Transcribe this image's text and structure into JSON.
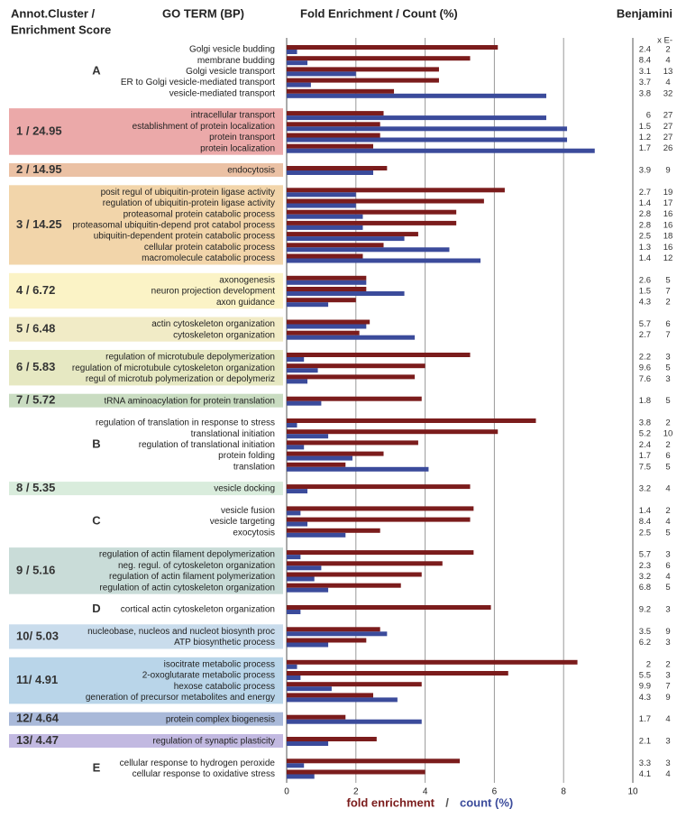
{
  "chart_data": {
    "type": "bar",
    "headers": {
      "cluster": [
        "Annot.Cluster /",
        "Enrichment Score"
      ],
      "term": "GO TERM (BP)",
      "values": "Fold Enrichment / Count (%)",
      "benjamini": "Benjamini",
      "benjamini_unit": "x E-"
    },
    "series": [
      {
        "name": "fold enrichment",
        "color": "#7b1c1c"
      },
      {
        "name": "count (%)",
        "color": "#3b4b9b"
      }
    ],
    "legend_separator": "/",
    "xlim": [
      0,
      10
    ],
    "xticks": [
      0,
      2,
      4,
      6,
      8,
      10
    ],
    "grid": true,
    "groups": [
      {
        "label": "A",
        "terms": [
          {
            "name": "Golgi vesicle budding",
            "values": [
              6.1,
              0.3
            ],
            "benjamini": [
              2.4,
              2
            ]
          },
          {
            "name": "membrane budding",
            "values": [
              5.3,
              0.6
            ],
            "benjamini": [
              8.4,
              4
            ]
          },
          {
            "name": "Golgi vesicle transport",
            "values": [
              4.4,
              2.0
            ],
            "benjamini": [
              3.1,
              13
            ]
          },
          {
            "name": "ER to Golgi vesicle-mediated transport",
            "values": [
              4.4,
              0.7
            ],
            "benjamini": [
              3.7,
              4
            ]
          },
          {
            "name": "vesicle-mediated transport",
            "values": [
              3.1,
              7.5
            ],
            "benjamini": [
              3.8,
              32
            ]
          }
        ]
      },
      {
        "label": "1 / 24.95",
        "color": "#eba9a9",
        "terms": [
          {
            "name": "intracellular transport",
            "values": [
              2.8,
              7.5
            ],
            "benjamini": [
              6,
              27
            ]
          },
          {
            "name": "establishment of protein localization",
            "values": [
              2.7,
              8.1
            ],
            "benjamini": [
              1.5,
              27
            ]
          },
          {
            "name": "protein transport",
            "values": [
              2.7,
              8.1
            ],
            "benjamini": [
              1.2,
              27
            ]
          },
          {
            "name": "protein localization",
            "values": [
              2.5,
              8.9
            ],
            "benjamini": [
              1.7,
              26
            ]
          }
        ]
      },
      {
        "label": "2 / 14.95",
        "color": "#ebc1a4",
        "terms": [
          {
            "name": "endocytosis",
            "values": [
              2.9,
              2.5
            ],
            "benjamini": [
              3.9,
              9
            ]
          }
        ]
      },
      {
        "label": "3 / 14.25",
        "color": "#f2d5aa",
        "terms": [
          {
            "name": "posit regul of ubiquitin-protein ligase activity",
            "values": [
              6.3,
              2.0
            ],
            "benjamini": [
              2.7,
              19
            ]
          },
          {
            "name": "regulation of ubiquitin-protein ligase activity",
            "values": [
              5.7,
              2.0
            ],
            "benjamini": [
              1.4,
              17
            ]
          },
          {
            "name": "proteasomal protein catabolic process",
            "values": [
              4.9,
              2.2
            ],
            "benjamini": [
              2.8,
              16
            ]
          },
          {
            "name": "proteasomal ubiquitin-depend prot catabol process",
            "values": [
              4.9,
              2.2
            ],
            "benjamini": [
              2.8,
              16
            ]
          },
          {
            "name": "ubiquitin-dependent protein catabolic process",
            "values": [
              3.8,
              3.4
            ],
            "benjamini": [
              2.5,
              18
            ]
          },
          {
            "name": "cellular protein catabolic process",
            "values": [
              2.8,
              4.7
            ],
            "benjamini": [
              1.3,
              16
            ]
          },
          {
            "name": "macromolecule catabolic process",
            "values": [
              2.2,
              5.6
            ],
            "benjamini": [
              1.4,
              12
            ]
          }
        ]
      },
      {
        "label": "4 / 6.72",
        "color": "#fbf3c6",
        "terms": [
          {
            "name": "axonogenesis",
            "values": [
              2.3,
              2.3
            ],
            "benjamini": [
              2.6,
              5
            ]
          },
          {
            "name": "neuron projection development",
            "values": [
              2.3,
              3.4
            ],
            "benjamini": [
              1.5,
              7
            ]
          },
          {
            "name": "axon guidance",
            "values": [
              2.0,
              1.2
            ],
            "benjamini": [
              4.3,
              2
            ]
          }
        ]
      },
      {
        "label": "5 / 6.48",
        "color": "#f1ebc6",
        "terms": [
          {
            "name": "actin cytoskeleton organization",
            "values": [
              2.4,
              2.3
            ],
            "benjamini": [
              5.7,
              6
            ]
          },
          {
            "name": "cytoskeleton organization",
            "values": [
              2.1,
              3.7
            ],
            "benjamini": [
              2.7,
              7
            ]
          }
        ]
      },
      {
        "label": "6 / 5.83",
        "color": "#e6e8c2",
        "terms": [
          {
            "name": "regulation of microtubule depolymerization",
            "values": [
              5.3,
              0.5
            ],
            "benjamini": [
              2.2,
              3
            ]
          },
          {
            "name": "regulation of microtubule cytoskeleton organization",
            "values": [
              4.0,
              0.9
            ],
            "benjamini": [
              9.6,
              5
            ]
          },
          {
            "name": "regul of microtub polymerization or depolymeriz",
            "values": [
              3.7,
              0.6
            ],
            "benjamini": [
              7.6,
              3
            ]
          }
        ]
      },
      {
        "label": "7 / 5.72",
        "color": "#c9dcc1",
        "terms": [
          {
            "name": "tRNA aminoacylation for protein translation",
            "values": [
              3.9,
              1.0
            ],
            "benjamini": [
              1.8,
              5
            ]
          }
        ]
      },
      {
        "label": "B",
        "terms": [
          {
            "name": "regulation of translation in response to stress",
            "values": [
              7.2,
              0.3
            ],
            "benjamini": [
              3.8,
              2
            ]
          },
          {
            "name": "translational initiation",
            "values": [
              6.1,
              1.2
            ],
            "benjamini": [
              5.2,
              10
            ]
          },
          {
            "name": "regulation of translational initiation",
            "values": [
              3.8,
              0.5
            ],
            "benjamini": [
              2.4,
              2
            ]
          },
          {
            "name": "protein folding",
            "values": [
              2.8,
              1.9
            ],
            "benjamini": [
              1.7,
              6
            ]
          },
          {
            "name": "translation",
            "values": [
              1.7,
              4.1
            ],
            "benjamini": [
              7.5,
              5
            ]
          }
        ]
      },
      {
        "label": "8 / 5.35",
        "color": "#d9ecdc",
        "terms": [
          {
            "name": "vesicle docking",
            "values": [
              5.3,
              0.6
            ],
            "benjamini": [
              3.2,
              4
            ]
          }
        ]
      },
      {
        "label": "C",
        "terms": [
          {
            "name": "vesicle fusion",
            "values": [
              5.4,
              0.4
            ],
            "benjamini": [
              1.4,
              2
            ]
          },
          {
            "name": "vesicle targeting",
            "values": [
              5.3,
              0.6
            ],
            "benjamini": [
              8.4,
              4
            ]
          },
          {
            "name": "exocytosis",
            "values": [
              2.7,
              1.7
            ],
            "benjamini": [
              2.5,
              5
            ]
          }
        ]
      },
      {
        "label": "9 / 5.16",
        "color": "#c9dcd8",
        "terms": [
          {
            "name": "regulation of actin filament depolymerization",
            "values": [
              5.4,
              0.4
            ],
            "benjamini": [
              5.7,
              3
            ]
          },
          {
            "name": "neg. regul. of cytoskeleton organization",
            "values": [
              4.5,
              1.0
            ],
            "benjamini": [
              2.3,
              6
            ]
          },
          {
            "name": "regulation of actin filament polymerization",
            "values": [
              3.9,
              0.8
            ],
            "benjamini": [
              3.2,
              4
            ]
          },
          {
            "name": "regulation of actin cytoskeleton organization",
            "values": [
              3.3,
              1.2
            ],
            "benjamini": [
              6.8,
              5
            ]
          }
        ]
      },
      {
        "label": "D",
        "terms": [
          {
            "name": "cortical actin cytoskeleton organization",
            "values": [
              5.9,
              0.4
            ],
            "benjamini": [
              9.2,
              3
            ]
          }
        ]
      },
      {
        "label": "10/ 5.03",
        "color": "#c9dcec",
        "terms": [
          {
            "name": "nucleobase, nucleos and nucleot biosynth proc",
            "values": [
              2.7,
              2.9
            ],
            "benjamini": [
              3.5,
              9
            ]
          },
          {
            "name": "ATP biosynthetic process",
            "values": [
              2.3,
              1.2
            ],
            "benjamini": [
              6.2,
              3
            ]
          }
        ]
      },
      {
        "label": "11/ 4.91",
        "color": "#b9d5e9",
        "terms": [
          {
            "name": "isocitrate metabolic process",
            "values": [
              8.4,
              0.3
            ],
            "benjamini": [
              2,
              2
            ]
          },
          {
            "name": "2-oxoglutarate metabolic process",
            "values": [
              6.4,
              0.4
            ],
            "benjamini": [
              5.5,
              3
            ]
          },
          {
            "name": "hexose catabolic process",
            "values": [
              3.9,
              1.3
            ],
            "benjamini": [
              9.9,
              7
            ]
          },
          {
            "name": "generation of precursor metabolites and energy",
            "values": [
              2.5,
              3.2
            ],
            "benjamini": [
              4.3,
              9
            ]
          }
        ]
      },
      {
        "label": "12/ 4.64",
        "color": "#a9b9d9",
        "terms": [
          {
            "name": "protein complex biogenesis",
            "values": [
              1.7,
              3.9
            ],
            "benjamini": [
              1.7,
              4
            ]
          }
        ]
      },
      {
        "label": "13/ 4.47",
        "color": "#c2b9e1",
        "terms": [
          {
            "name": "regulation of synaptic plasticity",
            "values": [
              2.6,
              1.2
            ],
            "benjamini": [
              2.1,
              3
            ]
          }
        ]
      },
      {
        "label": "E",
        "terms": [
          {
            "name": "cellular response to hydrogen peroxide",
            "values": [
              5.0,
              0.5
            ],
            "benjamini": [
              3.3,
              3
            ]
          },
          {
            "name": "cellular response to oxidative stress",
            "values": [
              4.0,
              0.8
            ],
            "benjamini": [
              4.1,
              4
            ]
          }
        ]
      }
    ]
  }
}
